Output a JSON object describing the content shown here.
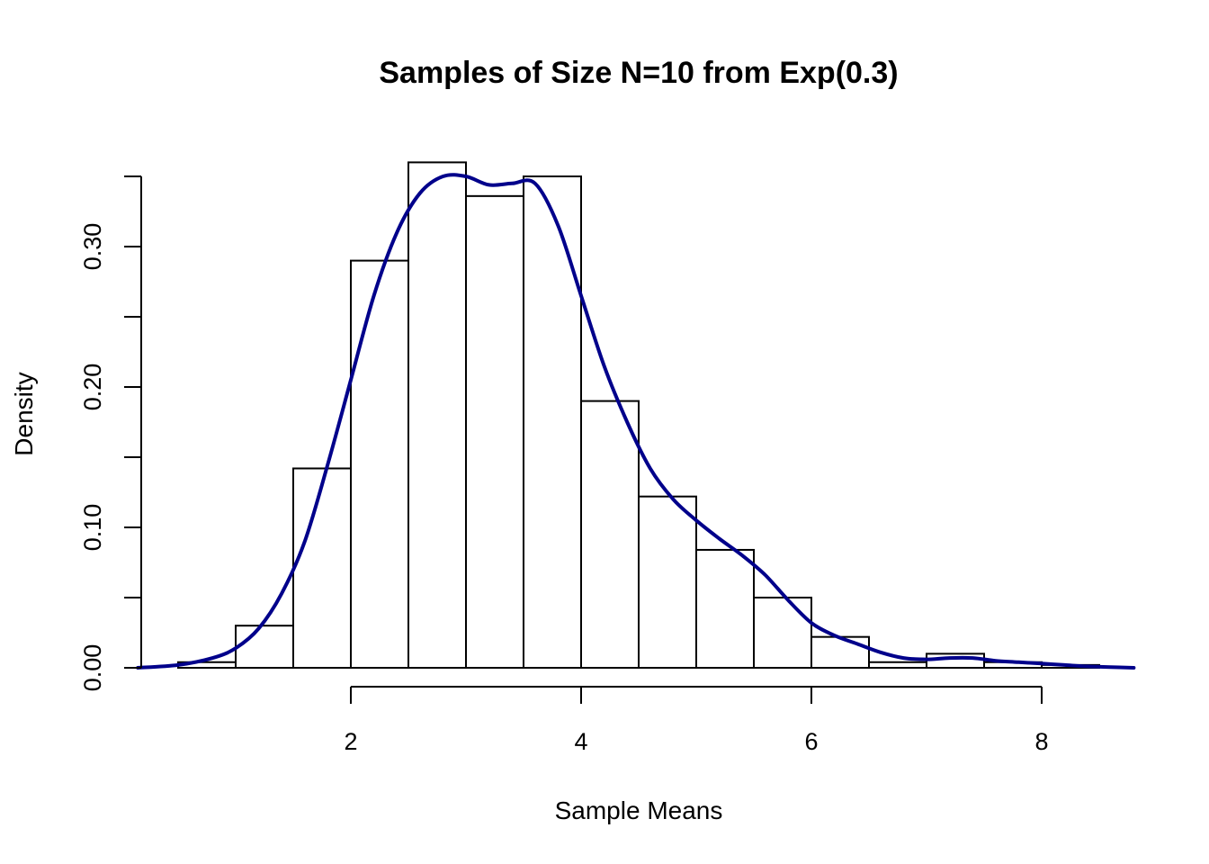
{
  "chart_data": {
    "type": "bar",
    "title": "Samples of Size N=10 from Exp(0.3)",
    "xlabel": "Sample Means",
    "ylabel": "Density",
    "xlim": [
      0.1,
      8.8
    ],
    "ylim": [
      0,
      0.35
    ],
    "x_ticks": [
      2,
      4,
      6,
      8
    ],
    "x_tick_labels": [
      "2",
      "4",
      "6",
      "8"
    ],
    "y_ticks": [
      0,
      0.05,
      0.1,
      0.15,
      0.2,
      0.25,
      0.3,
      0.35
    ],
    "y_tick_labels": [
      "0.00",
      "",
      "0.10",
      "",
      "0.20",
      "",
      "0.30",
      ""
    ],
    "grid": false,
    "legend": "none",
    "histogram": {
      "breaks": [
        0.5,
        1.0,
        1.5,
        2.0,
        2.5,
        3.0,
        3.5,
        4.0,
        4.5,
        5.0,
        5.5,
        6.0,
        6.5,
        7.0,
        7.5,
        8.0,
        8.5
      ],
      "density": [
        0.004,
        0.03,
        0.142,
        0.29,
        0.36,
        0.336,
        0.35,
        0.19,
        0.122,
        0.084,
        0.05,
        0.022,
        0.004,
        0.01,
        0.004,
        0.002
      ]
    },
    "density_curve": {
      "color": "#00008B",
      "x": [
        0.15,
        0.5,
        0.8,
        1.0,
        1.2,
        1.4,
        1.6,
        1.8,
        2.0,
        2.2,
        2.4,
        2.6,
        2.8,
        3.0,
        3.2,
        3.4,
        3.6,
        3.8,
        4.0,
        4.2,
        4.4,
        4.6,
        4.8,
        5.0,
        5.2,
        5.4,
        5.6,
        5.8,
        6.0,
        6.2,
        6.4,
        6.6,
        6.8,
        7.0,
        7.2,
        7.4,
        7.6,
        7.8,
        8.0,
        8.2,
        8.4,
        8.6,
        8.8
      ],
      "y": [
        0.0,
        0.002,
        0.007,
        0.014,
        0.028,
        0.053,
        0.09,
        0.145,
        0.205,
        0.265,
        0.31,
        0.338,
        0.35,
        0.35,
        0.344,
        0.345,
        0.345,
        0.315,
        0.265,
        0.215,
        0.175,
        0.142,
        0.12,
        0.105,
        0.092,
        0.08,
        0.066,
        0.048,
        0.032,
        0.023,
        0.017,
        0.011,
        0.007,
        0.006,
        0.007,
        0.007,
        0.005,
        0.004,
        0.003,
        0.002,
        0.001,
        0.0005,
        0.0
      ]
    }
  }
}
